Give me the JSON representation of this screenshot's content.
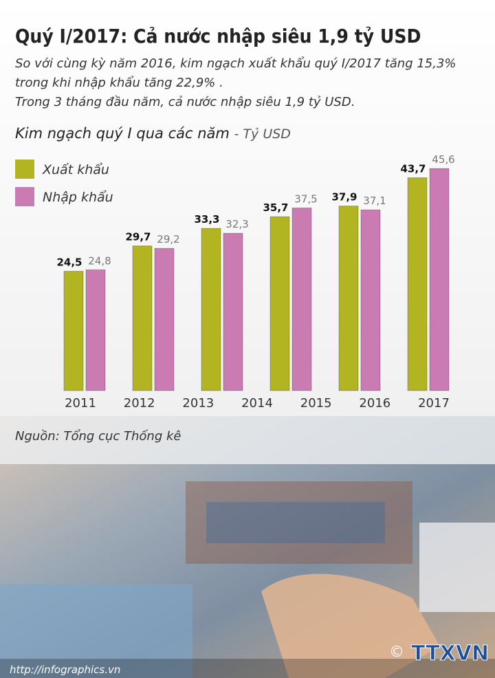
{
  "title": "Quý I/2017: Cả nước nhập siêu 1,9 tỷ USD",
  "subtitle": [
    "So với cùng kỳ năm 2016, kim ngạch xuất khẩu quý I/2017 tăng 15,3%",
    "trong khi nhập khẩu tăng 22,9% .",
    "Trong 3 tháng đầu năm, cả nước nhập siêu 1,9 tỷ USD."
  ],
  "chart_data": {
    "type": "bar",
    "title": "Kim ngạch quý I qua các năm",
    "unit": "- Tỷ USD",
    "categories": [
      "2011",
      "2012",
      "2013",
      "2014",
      "2015",
      "2016",
      "2017"
    ],
    "series": [
      {
        "name": "Xuất khẩu",
        "color": "#b3b422",
        "values": [
          null,
          24.5,
          29.7,
          33.3,
          35.7,
          37.9,
          43.7
        ],
        "value_labels": [
          null,
          "24,5",
          "29,7",
          "33,3",
          "35,7",
          "37,9",
          "43,7"
        ]
      },
      {
        "name": "Nhập khẩu",
        "color": "#c97bb2",
        "values": [
          null,
          24.8,
          29.2,
          32.3,
          37.5,
          37.1,
          45.6
        ],
        "value_labels": [
          null,
          "24,8",
          "29,2",
          "32,3",
          "37,5",
          "37,1",
          "45,6"
        ]
      }
    ]
  },
  "source": "Nguồn: Tổng cục Thống kê",
  "footer": {
    "url": "http://infographics.vn",
    "logo": "TTXVN",
    "copyright": "©"
  }
}
